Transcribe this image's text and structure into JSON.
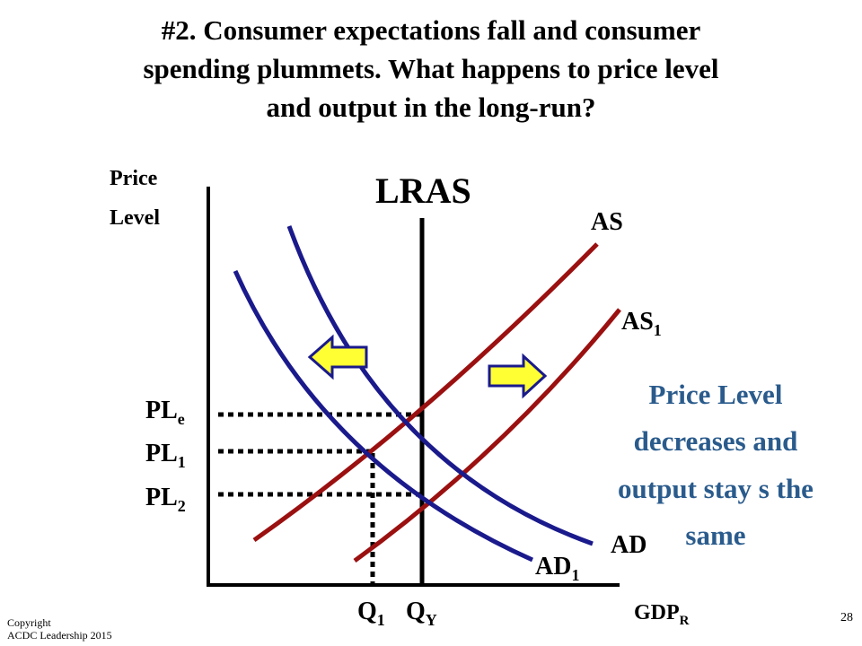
{
  "title": [
    "#2. Consumer expectations fall and consumer",
    "spending plummets. What happens to price level",
    "and output in the long-run?"
  ],
  "axes": {
    "y_label": [
      "Price",
      "Level"
    ],
    "x_label": {
      "text": "GDP",
      "sub": "R"
    }
  },
  "curves": {
    "lras": "LRAS",
    "as": "AS",
    "as1": {
      "text": "AS",
      "sub": "1"
    },
    "ad": "AD",
    "ad1": {
      "text": "AD",
      "sub": "1"
    }
  },
  "levels": [
    {
      "text": "PL",
      "sub": "e"
    },
    {
      "text": "PL",
      "sub": "1"
    },
    {
      "text": "PL",
      "sub": "2"
    }
  ],
  "outputs": [
    {
      "text": "Q",
      "sub": "1"
    },
    {
      "text": "Q",
      "sub": "Y"
    }
  ],
  "note": [
    "Price Level",
    "decreases and",
    "output stay s the",
    "same"
  ],
  "footer": {
    "copyright": [
      "Copyright",
      "ACDC Leadership 2015"
    ],
    "page": "28"
  }
}
